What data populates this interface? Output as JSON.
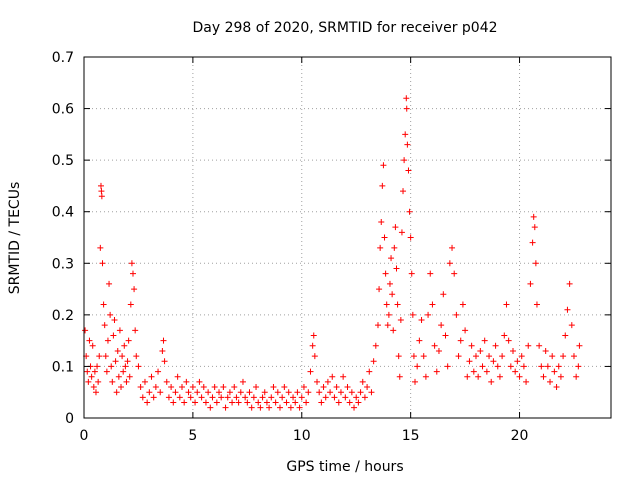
{
  "chart_data": {
    "type": "scatter",
    "title": "Day 298 of 2020, SRMTID for receiver p042",
    "xlabel": "GPS time / hours",
    "ylabel": "SRMTID / TECUs",
    "xlim": [
      0,
      24.2
    ],
    "ylim": [
      0,
      0.7
    ],
    "x_ticks": [
      0,
      5,
      10,
      15,
      20
    ],
    "x_tick_labels": [
      "0",
      "5",
      "10",
      "15",
      "20"
    ],
    "y_ticks": [
      0,
      0.1,
      0.2,
      0.3,
      0.4,
      0.5,
      0.6,
      0.7
    ],
    "y_tick_labels": [
      "0",
      "0.1",
      "0.2",
      "0.3",
      "0.4",
      "0.5",
      "0.6",
      "0.7"
    ],
    "grid": true,
    "marker": "+",
    "color": "#ff0000",
    "series": [
      {
        "name": "p042",
        "points": [
          [
            0.05,
            0.17
          ],
          [
            0.1,
            0.12
          ],
          [
            0.15,
            0.09
          ],
          [
            0.2,
            0.07
          ],
          [
            0.25,
            0.15
          ],
          [
            0.3,
            0.1
          ],
          [
            0.35,
            0.08
          ],
          [
            0.4,
            0.14
          ],
          [
            0.45,
            0.06
          ],
          [
            0.5,
            0.09
          ],
          [
            0.55,
            0.05
          ],
          [
            0.6,
            0.1
          ],
          [
            0.65,
            0.07
          ],
          [
            0.7,
            0.12
          ],
          [
            0.75,
            0.33
          ],
          [
            0.78,
            0.45
          ],
          [
            0.8,
            0.44
          ],
          [
            0.82,
            0.43
          ],
          [
            0.85,
            0.3
          ],
          [
            0.9,
            0.22
          ],
          [
            0.95,
            0.18
          ],
          [
            1.0,
            0.12
          ],
          [
            1.05,
            0.09
          ],
          [
            1.1,
            0.15
          ],
          [
            1.15,
            0.26
          ],
          [
            1.2,
            0.2
          ],
          [
            1.25,
            0.1
          ],
          [
            1.3,
            0.07
          ],
          [
            1.35,
            0.16
          ],
          [
            1.4,
            0.19
          ],
          [
            1.45,
            0.11
          ],
          [
            1.5,
            0.05
          ],
          [
            1.55,
            0.13
          ],
          [
            1.6,
            0.08
          ],
          [
            1.65,
            0.17
          ],
          [
            1.7,
            0.06
          ],
          [
            1.75,
            0.12
          ],
          [
            1.8,
            0.09
          ],
          [
            1.85,
            0.14
          ],
          [
            1.9,
            0.1
          ],
          [
            1.95,
            0.07
          ],
          [
            2.0,
            0.11
          ],
          [
            2.05,
            0.15
          ],
          [
            2.1,
            0.08
          ],
          [
            2.15,
            0.22
          ],
          [
            2.2,
            0.3
          ],
          [
            2.25,
            0.28
          ],
          [
            2.3,
            0.25
          ],
          [
            2.35,
            0.17
          ],
          [
            2.4,
            0.12
          ],
          [
            2.5,
            0.1
          ],
          [
            2.6,
            0.06
          ],
          [
            2.7,
            0.04
          ],
          [
            2.8,
            0.07
          ],
          [
            2.9,
            0.03
          ],
          [
            3.0,
            0.05
          ],
          [
            3.1,
            0.08
          ],
          [
            3.2,
            0.04
          ],
          [
            3.3,
            0.06
          ],
          [
            3.4,
            0.09
          ],
          [
            3.5,
            0.05
          ],
          [
            3.6,
            0.13
          ],
          [
            3.65,
            0.15
          ],
          [
            3.7,
            0.11
          ],
          [
            3.8,
            0.07
          ],
          [
            3.9,
            0.04
          ],
          [
            4.0,
            0.06
          ],
          [
            4.1,
            0.03
          ],
          [
            4.2,
            0.05
          ],
          [
            4.3,
            0.08
          ],
          [
            4.4,
            0.04
          ],
          [
            4.5,
            0.06
          ],
          [
            4.6,
            0.03
          ],
          [
            4.7,
            0.07
          ],
          [
            4.8,
            0.05
          ],
          [
            4.9,
            0.04
          ],
          [
            5.0,
            0.06
          ],
          [
            5.1,
            0.03
          ],
          [
            5.2,
            0.05
          ],
          [
            5.3,
            0.07
          ],
          [
            5.4,
            0.04
          ],
          [
            5.5,
            0.06
          ],
          [
            5.6,
            0.03
          ],
          [
            5.7,
            0.05
          ],
          [
            5.8,
            0.02
          ],
          [
            5.9,
            0.04
          ],
          [
            6.0,
            0.06
          ],
          [
            6.1,
            0.03
          ],
          [
            6.2,
            0.05
          ],
          [
            6.3,
            0.04
          ],
          [
            6.4,
            0.06
          ],
          [
            6.5,
            0.02
          ],
          [
            6.6,
            0.04
          ],
          [
            6.7,
            0.05
          ],
          [
            6.8,
            0.03
          ],
          [
            6.9,
            0.06
          ],
          [
            7.0,
            0.04
          ],
          [
            7.1,
            0.03
          ],
          [
            7.2,
            0.05
          ],
          [
            7.3,
            0.07
          ],
          [
            7.4,
            0.04
          ],
          [
            7.5,
            0.03
          ],
          [
            7.6,
            0.05
          ],
          [
            7.7,
            0.02
          ],
          [
            7.8,
            0.04
          ],
          [
            7.9,
            0.06
          ],
          [
            8.0,
            0.03
          ],
          [
            8.1,
            0.02
          ],
          [
            8.2,
            0.04
          ],
          [
            8.3,
            0.05
          ],
          [
            8.4,
            0.03
          ],
          [
            8.5,
            0.02
          ],
          [
            8.6,
            0.04
          ],
          [
            8.7,
            0.06
          ],
          [
            8.8,
            0.03
          ],
          [
            8.9,
            0.05
          ],
          [
            9.0,
            0.02
          ],
          [
            9.1,
            0.04
          ],
          [
            9.2,
            0.06
          ],
          [
            9.3,
            0.03
          ],
          [
            9.4,
            0.05
          ],
          [
            9.5,
            0.02
          ],
          [
            9.6,
            0.04
          ],
          [
            9.7,
            0.03
          ],
          [
            9.8,
            0.05
          ],
          [
            9.9,
            0.02
          ],
          [
            10.0,
            0.04
          ],
          [
            10.1,
            0.06
          ],
          [
            10.2,
            0.03
          ],
          [
            10.3,
            0.05
          ],
          [
            10.4,
            0.09
          ],
          [
            10.5,
            0.14
          ],
          [
            10.55,
            0.16
          ],
          [
            10.6,
            0.12
          ],
          [
            10.7,
            0.07
          ],
          [
            10.8,
            0.05
          ],
          [
            10.9,
            0.03
          ],
          [
            11.0,
            0.06
          ],
          [
            11.1,
            0.04
          ],
          [
            11.2,
            0.07
          ],
          [
            11.3,
            0.05
          ],
          [
            11.4,
            0.08
          ],
          [
            11.5,
            0.04
          ],
          [
            11.6,
            0.06
          ],
          [
            11.7,
            0.03
          ],
          [
            11.8,
            0.05
          ],
          [
            11.9,
            0.08
          ],
          [
            12.0,
            0.04
          ],
          [
            12.1,
            0.06
          ],
          [
            12.2,
            0.03
          ],
          [
            12.3,
            0.05
          ],
          [
            12.4,
            0.02
          ],
          [
            12.5,
            0.04
          ],
          [
            12.6,
            0.03
          ],
          [
            12.7,
            0.05
          ],
          [
            12.8,
            0.07
          ],
          [
            12.9,
            0.04
          ],
          [
            13.0,
            0.06
          ],
          [
            13.1,
            0.09
          ],
          [
            13.2,
            0.05
          ],
          [
            13.3,
            0.11
          ],
          [
            13.4,
            0.14
          ],
          [
            13.5,
            0.18
          ],
          [
            13.55,
            0.25
          ],
          [
            13.6,
            0.33
          ],
          [
            13.65,
            0.38
          ],
          [
            13.7,
            0.45
          ],
          [
            13.75,
            0.49
          ],
          [
            13.8,
            0.35
          ],
          [
            13.85,
            0.28
          ],
          [
            13.9,
            0.22
          ],
          [
            13.95,
            0.18
          ],
          [
            14.0,
            0.2
          ],
          [
            14.05,
            0.26
          ],
          [
            14.1,
            0.31
          ],
          [
            14.15,
            0.24
          ],
          [
            14.2,
            0.17
          ],
          [
            14.25,
            0.33
          ],
          [
            14.3,
            0.37
          ],
          [
            14.35,
            0.29
          ],
          [
            14.4,
            0.22
          ],
          [
            14.45,
            0.12
          ],
          [
            14.5,
            0.08
          ],
          [
            14.55,
            0.19
          ],
          [
            14.6,
            0.36
          ],
          [
            14.65,
            0.44
          ],
          [
            14.7,
            0.5
          ],
          [
            14.75,
            0.55
          ],
          [
            14.8,
            0.62
          ],
          [
            14.82,
            0.6
          ],
          [
            14.85,
            0.53
          ],
          [
            14.9,
            0.48
          ],
          [
            14.95,
            0.4
          ],
          [
            15.0,
            0.35
          ],
          [
            15.05,
            0.28
          ],
          [
            15.1,
            0.2
          ],
          [
            15.15,
            0.12
          ],
          [
            15.2,
            0.07
          ],
          [
            15.3,
            0.1
          ],
          [
            15.4,
            0.15
          ],
          [
            15.5,
            0.19
          ],
          [
            15.6,
            0.12
          ],
          [
            15.7,
            0.08
          ],
          [
            15.8,
            0.2
          ],
          [
            15.9,
            0.28
          ],
          [
            16.0,
            0.22
          ],
          [
            16.1,
            0.14
          ],
          [
            16.2,
            0.09
          ],
          [
            16.3,
            0.13
          ],
          [
            16.4,
            0.18
          ],
          [
            16.5,
            0.24
          ],
          [
            16.6,
            0.16
          ],
          [
            16.7,
            0.1
          ],
          [
            16.8,
            0.3
          ],
          [
            16.9,
            0.33
          ],
          [
            17.0,
            0.28
          ],
          [
            17.1,
            0.2
          ],
          [
            17.2,
            0.12
          ],
          [
            17.3,
            0.15
          ],
          [
            17.4,
            0.22
          ],
          [
            17.5,
            0.17
          ],
          [
            17.6,
            0.08
          ],
          [
            17.7,
            0.11
          ],
          [
            17.8,
            0.14
          ],
          [
            17.9,
            0.09
          ],
          [
            18.0,
            0.12
          ],
          [
            18.1,
            0.08
          ],
          [
            18.2,
            0.13
          ],
          [
            18.3,
            0.1
          ],
          [
            18.4,
            0.15
          ],
          [
            18.5,
            0.09
          ],
          [
            18.6,
            0.12
          ],
          [
            18.7,
            0.07
          ],
          [
            18.8,
            0.11
          ],
          [
            18.9,
            0.14
          ],
          [
            19.0,
            0.1
          ],
          [
            19.1,
            0.08
          ],
          [
            19.2,
            0.12
          ],
          [
            19.3,
            0.16
          ],
          [
            19.4,
            0.22
          ],
          [
            19.5,
            0.15
          ],
          [
            19.6,
            0.1
          ],
          [
            19.7,
            0.13
          ],
          [
            19.8,
            0.09
          ],
          [
            19.9,
            0.11
          ],
          [
            20.0,
            0.08
          ],
          [
            20.1,
            0.12
          ],
          [
            20.2,
            0.1
          ],
          [
            20.3,
            0.07
          ],
          [
            20.4,
            0.14
          ],
          [
            20.5,
            0.26
          ],
          [
            20.6,
            0.34
          ],
          [
            20.65,
            0.39
          ],
          [
            20.7,
            0.37
          ],
          [
            20.75,
            0.3
          ],
          [
            20.8,
            0.22
          ],
          [
            20.9,
            0.14
          ],
          [
            21.0,
            0.1
          ],
          [
            21.1,
            0.08
          ],
          [
            21.2,
            0.13
          ],
          [
            21.3,
            0.1
          ],
          [
            21.4,
            0.07
          ],
          [
            21.5,
            0.12
          ],
          [
            21.6,
            0.09
          ],
          [
            21.7,
            0.06
          ],
          [
            21.8,
            0.1
          ],
          [
            21.9,
            0.08
          ],
          [
            22.0,
            0.12
          ],
          [
            22.1,
            0.16
          ],
          [
            22.2,
            0.21
          ],
          [
            22.3,
            0.26
          ],
          [
            22.4,
            0.18
          ],
          [
            22.5,
            0.12
          ],
          [
            22.6,
            0.08
          ],
          [
            22.7,
            0.1
          ],
          [
            22.75,
            0.14
          ]
        ]
      }
    ]
  }
}
